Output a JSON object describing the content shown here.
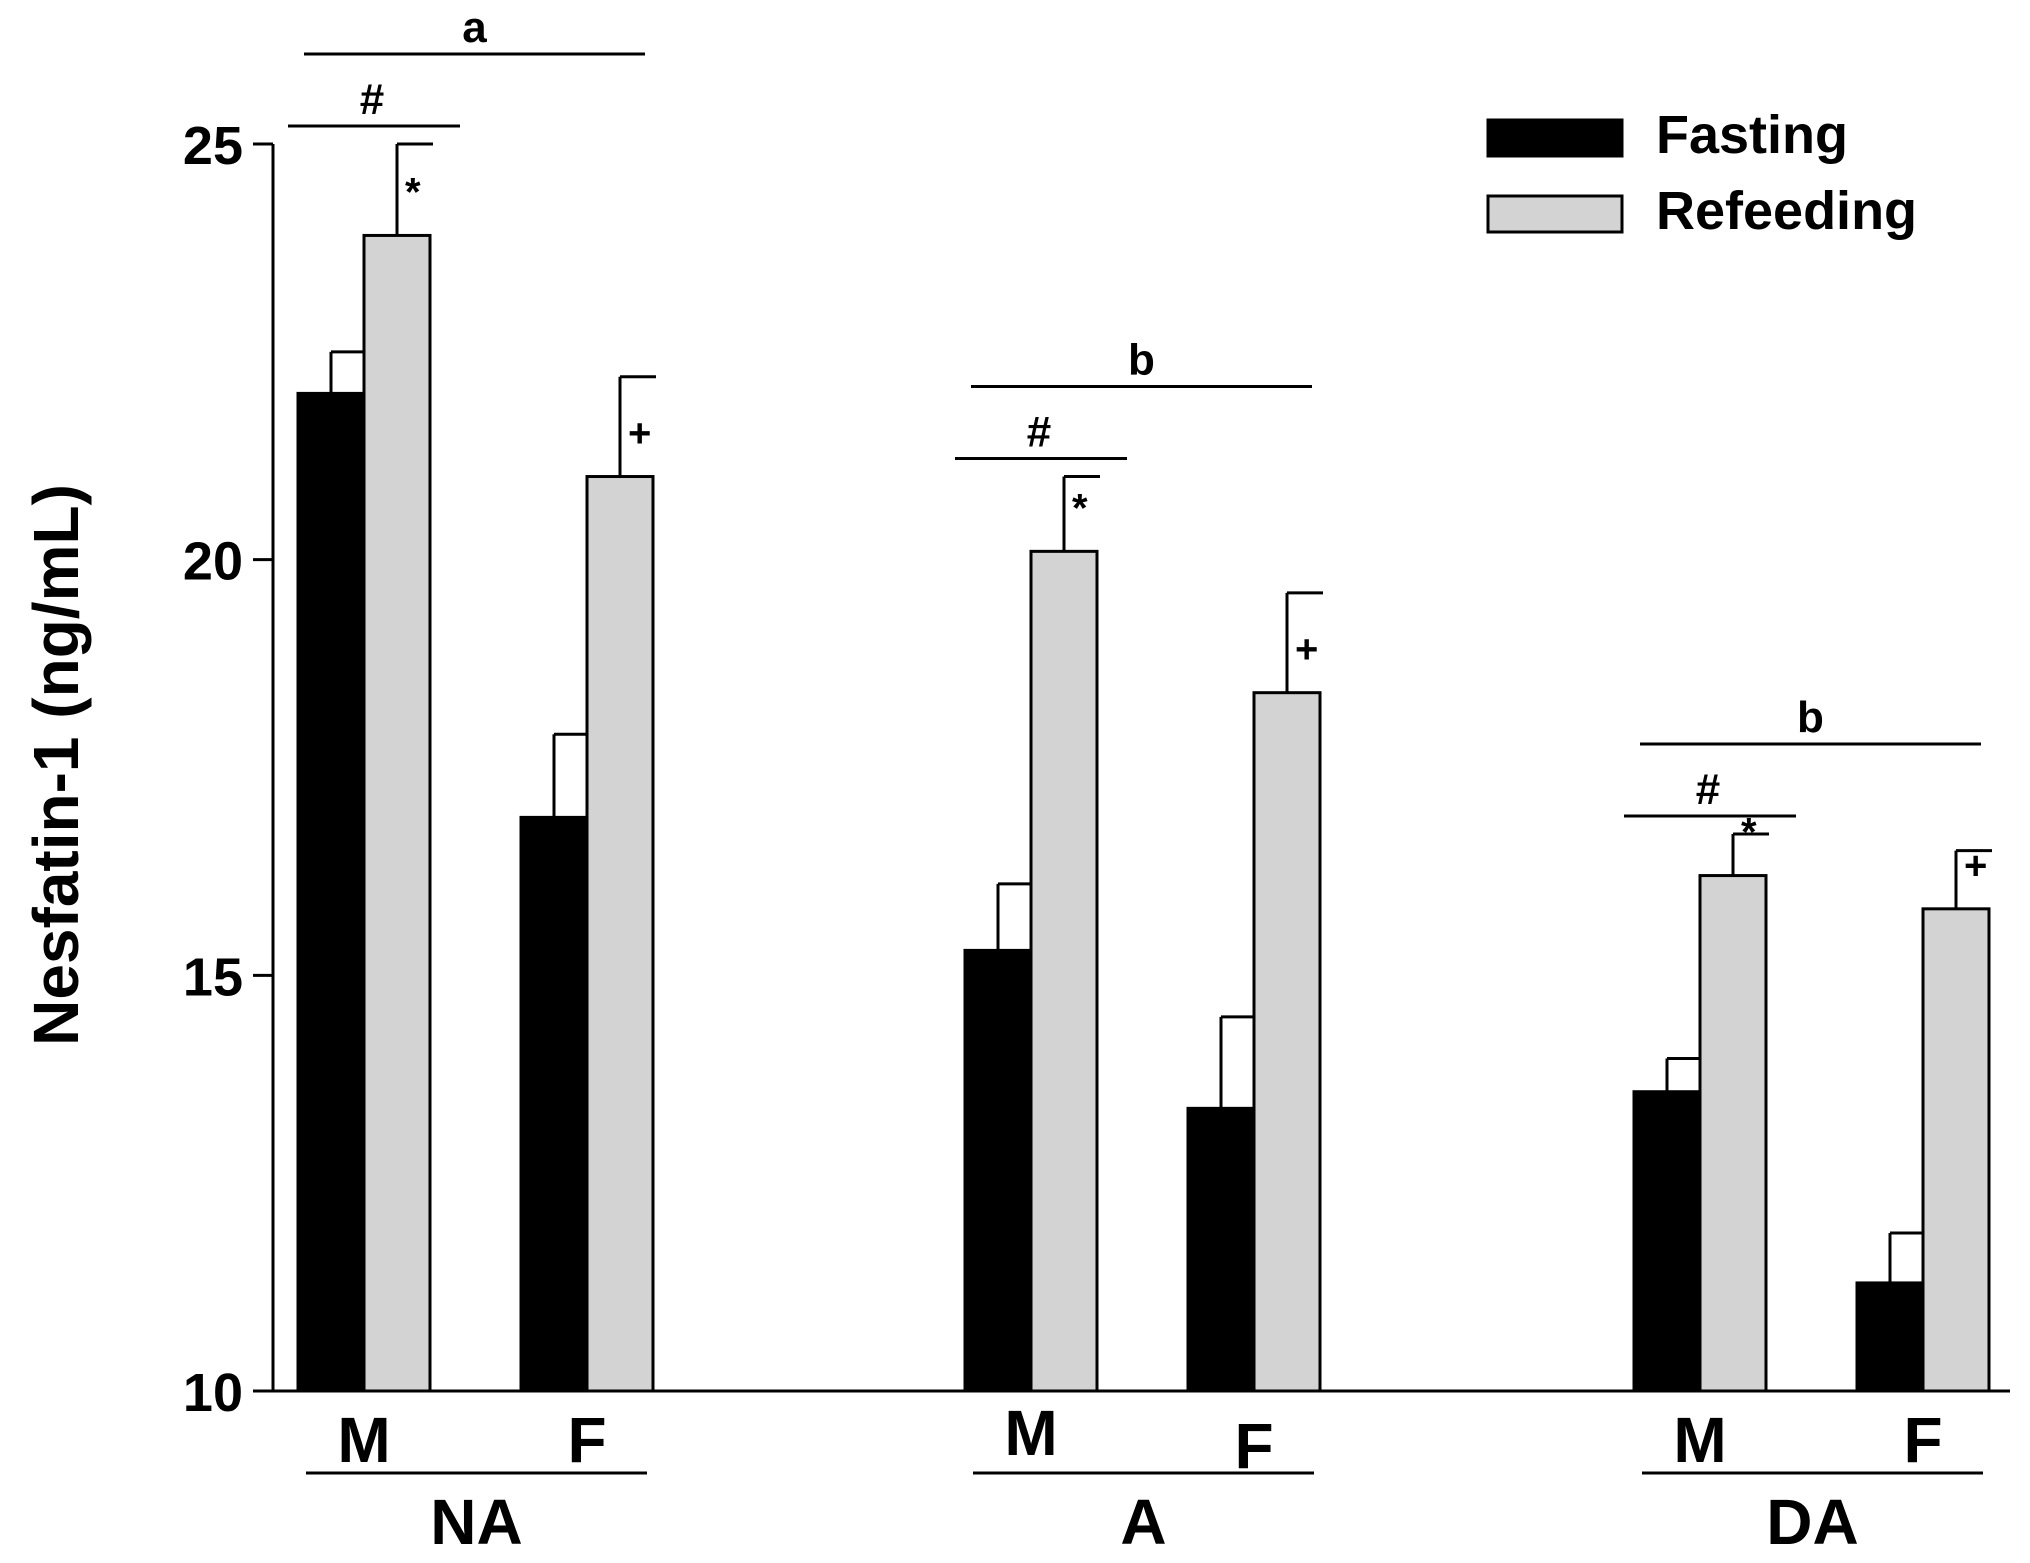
{
  "chart_data": {
    "type": "bar",
    "ylabel": "Nesfatin-1 (ng/mL)",
    "ylim": [
      10,
      25
    ],
    "yticks": [
      10,
      15,
      20,
      25
    ],
    "grid": false,
    "legend_position": "top-right",
    "series": [
      {
        "name": "Fasting",
        "color": "#000000"
      },
      {
        "name": "Refeeding",
        "color": "#d3d3d3"
      }
    ],
    "groups": [
      {
        "label": "NA",
        "letter": "a",
        "hash": "#",
        "sexes": [
          {
            "label": "M",
            "fasting": 22.0,
            "fasting_err": 0.5,
            "refeeding": 23.9,
            "refeeding_err": 1.1,
            "sig": "*"
          },
          {
            "label": "F",
            "fasting": 16.9,
            "fasting_err": 1.0,
            "refeeding": 21.0,
            "refeeding_err": 1.2,
            "sig": "+"
          }
        ]
      },
      {
        "label": "A",
        "letter": "b",
        "hash": "#",
        "sexes": [
          {
            "label": "M",
            "fasting": 15.3,
            "fasting_err": 0.8,
            "refeeding": 20.1,
            "refeeding_err": 0.9,
            "sig": "*"
          },
          {
            "label": "F",
            "fasting": 13.4,
            "fasting_err": 1.1,
            "refeeding": 18.4,
            "refeeding_err": 1.2,
            "sig": "+"
          }
        ]
      },
      {
        "label": "DA",
        "letter": "b",
        "hash": "#",
        "sexes": [
          {
            "label": "M",
            "fasting": 13.6,
            "fasting_err": 0.4,
            "refeeding": 16.2,
            "refeeding_err": 0.5,
            "sig": "*"
          },
          {
            "label": "F",
            "fasting": 11.3,
            "fasting_err": 0.6,
            "refeeding": 15.8,
            "refeeding_err": 0.7,
            "sig": "+"
          }
        ]
      }
    ]
  }
}
